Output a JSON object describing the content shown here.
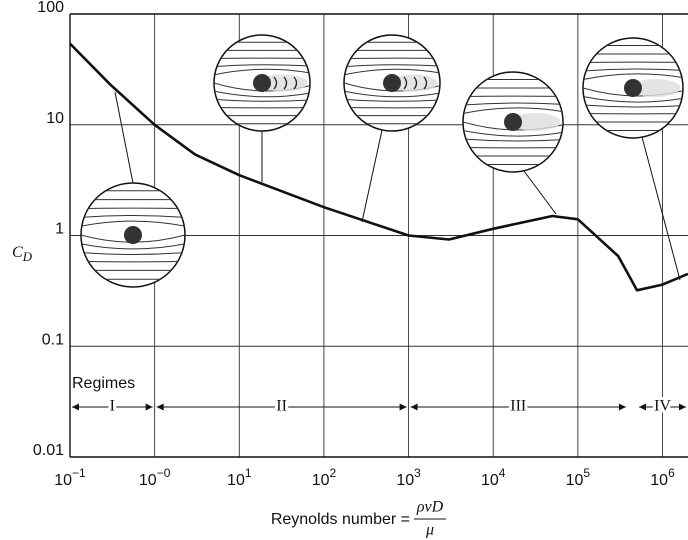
{
  "chart_data": {
    "type": "line",
    "x_label": "Reynolds number =",
    "x_label_numerator": "ρvD",
    "x_label_denominator": "μ",
    "y_label": "C",
    "y_label_subscript": "D",
    "x": [
      0.1,
      0.3,
      1,
      3,
      10,
      100,
      1000,
      3000,
      10000,
      50000,
      100000,
      300000,
      500000,
      1000000,
      2000000
    ],
    "values": [
      54,
      23,
      10,
      5.4,
      3.5,
      1.8,
      1.0,
      0.92,
      1.15,
      1.5,
      1.4,
      0.65,
      0.32,
      0.36,
      0.45
    ],
    "color": "#111111",
    "x_log": true,
    "y_log": true,
    "grid": true,
    "xlim": [
      0.1,
      2000000
    ],
    "ylim": [
      0.01,
      100
    ],
    "xticks": [
      {
        "value": 0.1,
        "label": "10−1"
      },
      {
        "value": 1,
        "label": "10−0"
      },
      {
        "value": 10,
        "label": "101"
      },
      {
        "value": 100,
        "label": "102"
      },
      {
        "value": 1000,
        "label": "103"
      },
      {
        "value": 10000,
        "label": "104"
      },
      {
        "value": 100000,
        "label": "105"
      },
      {
        "value": 1000000,
        "label": "106"
      }
    ],
    "yticks": [
      0.01,
      0.1,
      1,
      10,
      100
    ],
    "regimes_title": "Regimes",
    "regimes": [
      {
        "label": "I",
        "from": 0.1,
        "to": 1
      },
      {
        "label": "II",
        "from": 1,
        "to": 1000
      },
      {
        "label": "III",
        "from": 1000,
        "to": 390000
      },
      {
        "label": "IV",
        "from": 500000,
        "to": 2000000
      }
    ]
  }
}
